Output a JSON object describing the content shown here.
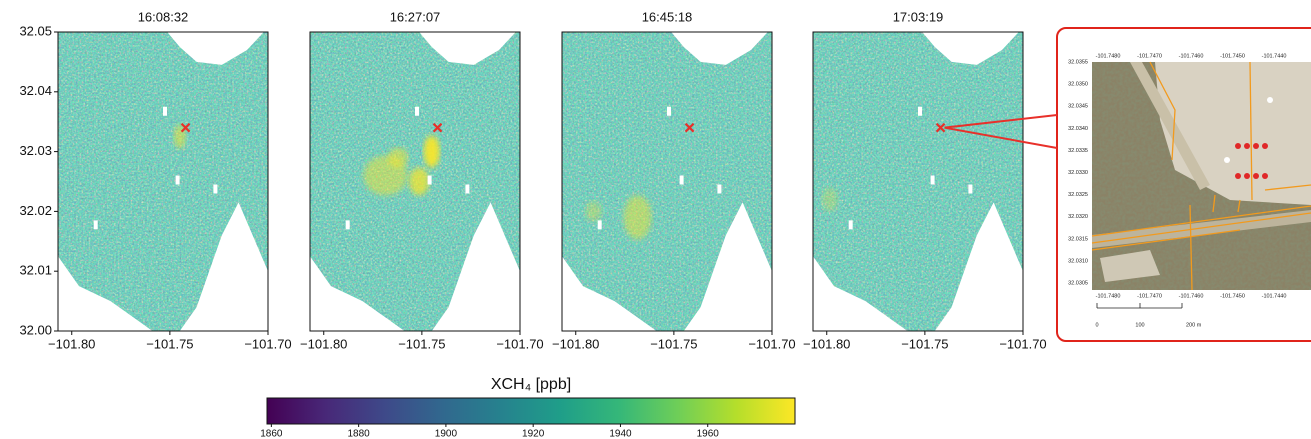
{
  "chart_data": [
    {
      "type": "heatmap",
      "title": "16:08:32",
      "xlim": [
        -101.807,
        -101.7
      ],
      "xticks": [
        {
          "value": -101.8,
          "label": "−101.80"
        },
        {
          "value": -101.75,
          "label": "−101.75"
        },
        {
          "value": -101.7,
          "label": "−101.70"
        }
      ],
      "ylim": [
        32.0,
        32.05
      ],
      "yticks": [
        {
          "value": 32.0,
          "label": "32.00"
        },
        {
          "value": 32.01,
          "label": "32.01"
        },
        {
          "value": 32.02,
          "label": "32.02"
        },
        {
          "value": 32.03,
          "label": "32.03"
        },
        {
          "value": 32.04,
          "label": "32.04"
        },
        {
          "value": 32.05,
          "label": "32.05"
        }
      ],
      "marker": {
        "x": -101.742,
        "y": 32.034,
        "color": "#e8302a"
      }
    },
    {
      "type": "heatmap",
      "title": "16:27:07",
      "xlim": [
        -101.807,
        -101.7
      ],
      "xticks": [
        {
          "value": -101.8,
          "label": "−101.80"
        },
        {
          "value": -101.75,
          "label": "−101.75"
        },
        {
          "value": -101.7,
          "label": "−101.70"
        }
      ],
      "ylim": [
        32.0,
        32.05
      ],
      "marker": {
        "x": -101.742,
        "y": 32.034,
        "color": "#e8302a"
      }
    },
    {
      "type": "heatmap",
      "title": "16:45:18",
      "xlim": [
        -101.807,
        -101.7
      ],
      "xticks": [
        {
          "value": -101.8,
          "label": "−101.80"
        },
        {
          "value": -101.75,
          "label": "−101.75"
        },
        {
          "value": -101.7,
          "label": "−101.70"
        }
      ],
      "ylim": [
        32.0,
        32.05
      ],
      "marker": {
        "x": -101.742,
        "y": 32.034,
        "color": "#e8302a"
      }
    },
    {
      "type": "heatmap",
      "title": "17:03:19",
      "xlim": [
        -101.807,
        -101.7
      ],
      "xticks": [
        {
          "value": -101.8,
          "label": "−101.80"
        },
        {
          "value": -101.75,
          "label": "−101.75"
        },
        {
          "value": -101.7,
          "label": "−101.70"
        }
      ],
      "ylim": [
        32.0,
        32.05
      ],
      "marker": {
        "x": -101.742,
        "y": 32.034,
        "color": "#e8302a"
      }
    }
  ],
  "colorbar": {
    "label": "XCH₄ [ppb]",
    "colormap": "viridis",
    "lim": [
      1859,
      1980
    ],
    "ticks": [
      1860,
      1880,
      1900,
      1920,
      1940,
      1960
    ]
  },
  "inset": {
    "xlabels": [
      "-101.7480",
      "-101.7470",
      "-101.7460",
      "-101.7450",
      "-101.7440"
    ],
    "ylabels": [
      "32.0355",
      "32.0350",
      "32.0345",
      "32.0340",
      "32.0335",
      "32.0330",
      "32.0325",
      "32.0320",
      "32.0315",
      "32.0310",
      "32.0305"
    ],
    "scale_labels": [
      "0",
      "100",
      "200 m"
    ]
  }
}
